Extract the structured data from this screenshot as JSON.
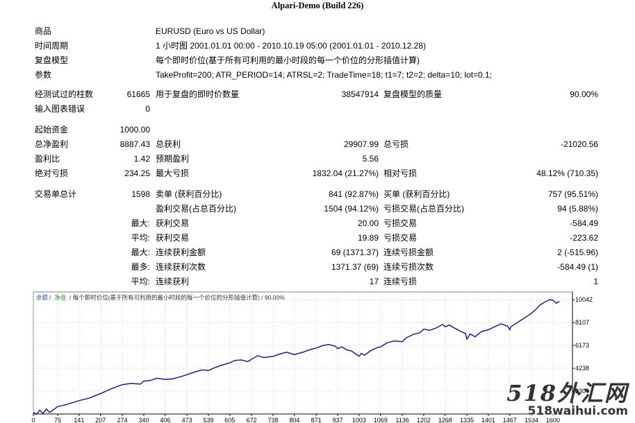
{
  "report_title": "Alpari-Demo (Build 226)",
  "info": {
    "symbol_label": "商品",
    "symbol_value": "EURUSD (Euro vs US Dollar)",
    "period_label": "时间周期",
    "period_value": "1 小时图 2001.01.01 00:00 - 2010.10.19 05:00 (2001.01.01 - 2010.12.28)",
    "model_label": "复盘模型",
    "model_value": "每个即时价位(基于所有可利用的最小时段的每一个价位的分形插值计算)",
    "params_label": "参数",
    "params_value": "TakeProfit=200; ATR_PERIOD=14; ATRSL=2; TradeTime=18; t1=7; t2=2; delta=10; lot=0.1;"
  },
  "bars": {
    "bars_label": "经测试过的柱数",
    "bars_value": "61665",
    "ticks_label": "用于复盘的即时价数量",
    "ticks_value": "38547914",
    "quality_label": "复盘模型的质量",
    "quality_value": "90.00%",
    "errors_label": "输入图表错误",
    "errors_value": "0"
  },
  "money": {
    "deposit_label": "起始资金",
    "deposit_value": "1000.00",
    "netprofit_label": "总净盈利",
    "netprofit_value": "8887.43",
    "grossprofit_label": "总获利",
    "grossprofit_value": "29907.99",
    "grossloss_label": "总亏损",
    "grossloss_value": "-21020.56",
    "pf_label": "盈利比",
    "pf_value": "1.42",
    "expected_label": "预期盈利",
    "expected_value": "5.56",
    "absdd_label": "绝对亏损",
    "absdd_value": "234.25",
    "maxdd_label": "最大亏损",
    "maxdd_value": "1832.04 (21.27%)",
    "reldd_label": "相对亏损",
    "reldd_value": "48.12% (710.35)"
  },
  "trades": {
    "total_label": "交易单总计",
    "total_value": "1598",
    "short_label": "卖单 (获利百分比)",
    "short_value": "841 (92.87%)",
    "long_label": "买单 (获利百分比)",
    "long_value": "757 (95.51%)",
    "profit_trades_label": "盈利交易(占总百分比)",
    "profit_trades_value": "1504 (94.12%)",
    "loss_trades_label": "亏损交易(占总百分比)",
    "loss_trades_value": "94 (5.88%)",
    "max_label": "最大:",
    "largest_profit_label": "获利交易",
    "largest_profit_value": "20.00",
    "largest_loss_label": "亏损交易",
    "largest_loss_value": "-584.49",
    "avg_label": "平均:",
    "avg_profit_label": "获利交易",
    "avg_profit_value": "19.89",
    "avg_loss_label": "亏损交易",
    "avg_loss_value": "-223.62",
    "max2_label": "最大:",
    "max_consec_wins_label": "连续获利金额",
    "max_consec_wins_value": "69 (1371.37)",
    "max_consec_losses_label": "连续亏损金额",
    "max_consec_losses_value": "2 (-515.96)",
    "most_label": "最多:",
    "max_consec_profit_label": "连续获利次数",
    "max_consec_profit_value": "1371.37 (69)",
    "max_consec_loss_label": "连续亏损次数",
    "max_consec_loss_value": "-584.49 (1)",
    "avg2_label": "平均:",
    "avg_consec_wins_label": "连续获利",
    "avg_consec_wins_value": "17",
    "avg_consec_losses_label": "连续亏损",
    "avg_consec_losses_value": "1"
  },
  "chart_legend": {
    "balance": "余额",
    "sep1": "/",
    "equity": "净值",
    "rest": "/ 每个即时价位(基于所有可利用的最小时段的每一个价位的分形插值计算) / 90.00%"
  },
  "watermark": {
    "big": "518外汇网",
    "small": "518waihui.com"
  },
  "colors": {
    "balance_line": "#1c1c8c",
    "axis": "#000000",
    "grid": "#c8c8c8",
    "equity_label": "#2e9c2e",
    "balance_label": "#2e5fa0",
    "watermark": "#333333"
  },
  "chart_data": {
    "type": "line",
    "x_ticks": [
      "0",
      "75",
      "141",
      "207",
      "274",
      "340",
      "406",
      "473",
      "539",
      "605",
      "672",
      "738",
      "804",
      "871",
      "937",
      "1003",
      "1069",
      "1136",
      "1202",
      "1268",
      "1335",
      "1401",
      "1467",
      "1534",
      "1600"
    ],
    "y_ticks": [
      "10042",
      "8107",
      "6173",
      "4238",
      "2304"
    ],
    "xlim": [
      0,
      1660
    ],
    "ylim": [
      370,
      10700
    ],
    "grid": true,
    "series": [
      {
        "name": "余额",
        "x": [
          0,
          10,
          20,
          30,
          40,
          50,
          60,
          75,
          100,
          141,
          170,
          207,
          240,
          274,
          300,
          330,
          340,
          360,
          380,
          406,
          430,
          450,
          473,
          500,
          520,
          539,
          560,
          580,
          605,
          620,
          640,
          660,
          672,
          690,
          710,
          738,
          760,
          780,
          804,
          830,
          850,
          871,
          890,
          910,
          930,
          937,
          950,
          965,
          980,
          990,
          1003,
          1010,
          1020,
          1040,
          1060,
          1069,
          1090,
          1110,
          1136,
          1150,
          1170,
          1190,
          1202,
          1220,
          1240,
          1260,
          1268,
          1280,
          1300,
          1320,
          1330,
          1335,
          1345,
          1360,
          1380,
          1401,
          1420,
          1440,
          1460,
          1467,
          1470,
          1490,
          1510,
          1534,
          1550,
          1560,
          1575,
          1590,
          1600,
          1610,
          1620
        ],
        "y": [
          500,
          350,
          700,
          400,
          800,
          500,
          700,
          1000,
          1150,
          1500,
          1700,
          2100,
          2500,
          2850,
          2950,
          2900,
          3150,
          3200,
          3400,
          3300,
          3350,
          3500,
          3700,
          3950,
          4100,
          4050,
          4300,
          4500,
          4700,
          4900,
          4950,
          4800,
          5000,
          5300,
          5150,
          5250,
          5450,
          5600,
          5400,
          5600,
          5800,
          5950,
          6150,
          6250,
          6100,
          5900,
          6050,
          5800,
          5700,
          5500,
          5250,
          5500,
          5350,
          5750,
          6000,
          6050,
          6400,
          6550,
          6500,
          6850,
          7100,
          7250,
          7550,
          7450,
          7650,
          7950,
          7750,
          7900,
          7600,
          7300,
          7200,
          6700,
          7150,
          6900,
          7350,
          7500,
          7750,
          8000,
          7800,
          7500,
          7750,
          8100,
          8450,
          8900,
          9300,
          9600,
          9850,
          10042,
          10000,
          9750,
          9900
        ]
      }
    ]
  }
}
